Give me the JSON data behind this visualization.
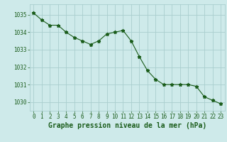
{
  "x": [
    0,
    1,
    2,
    3,
    4,
    5,
    6,
    7,
    8,
    9,
    10,
    11,
    12,
    13,
    14,
    15,
    16,
    17,
    18,
    19,
    20,
    21,
    22,
    23
  ],
  "y": [
    1035.1,
    1034.7,
    1034.4,
    1034.4,
    1034.0,
    1033.7,
    1033.5,
    1033.3,
    1033.5,
    1033.9,
    1034.0,
    1034.1,
    1033.5,
    1032.6,
    1031.8,
    1031.3,
    1031.0,
    1031.0,
    1031.0,
    1031.0,
    1030.9,
    1030.3,
    1030.1,
    1029.9
  ],
  "line_color": "#1a5c1a",
  "marker": "*",
  "marker_size": 3.5,
  "bg_color": "#ceeaea",
  "grid_color": "#aacece",
  "xlabel": "Graphe pression niveau de la mer (hPa)",
  "xlabel_fontsize": 7.0,
  "xlabel_color": "#1a5c1a",
  "tick_color": "#1a5c1a",
  "tick_fontsize": 5.5,
  "ylim": [
    1029.5,
    1035.6
  ],
  "yticks": [
    1030,
    1031,
    1032,
    1033,
    1034,
    1035
  ],
  "xlim": [
    -0.5,
    23.5
  ],
  "xticks": [
    0,
    1,
    2,
    3,
    4,
    5,
    6,
    7,
    8,
    9,
    10,
    11,
    12,
    13,
    14,
    15,
    16,
    17,
    18,
    19,
    20,
    21,
    22,
    23
  ]
}
